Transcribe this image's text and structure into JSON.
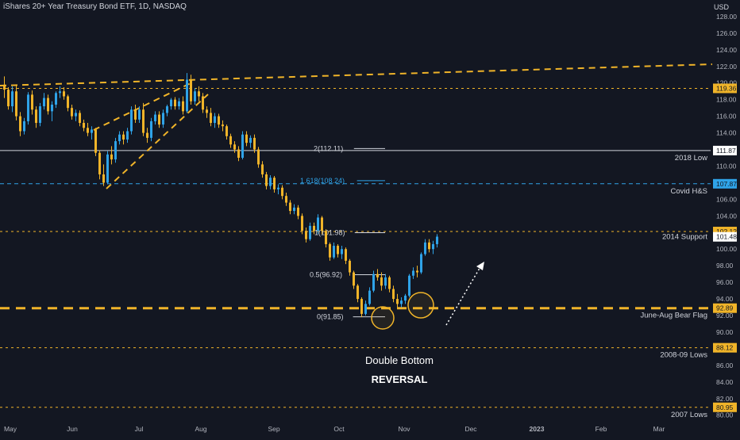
{
  "chart": {
    "title": "iShares 20+ Year Treasury Bond ETF, 1D, NASDAQ",
    "currency": "USD"
  },
  "chart_data": {
    "type": "candlestick",
    "x_ticks": [
      "May",
      "Jun",
      "Jul",
      "Aug",
      "Sep",
      "Oct",
      "Nov",
      "Dec",
      "2023",
      "Feb",
      "Mar"
    ],
    "y_ticks": [
      80,
      82,
      84,
      86,
      88,
      90,
      92,
      94,
      96,
      98,
      100,
      102,
      104,
      106,
      108,
      110,
      112,
      114,
      116,
      118,
      120,
      122,
      124,
      126,
      128
    ],
    "ylim": [
      79.4,
      130
    ],
    "grid": false,
    "candles": [
      [
        119.8,
        120.8,
        118.2,
        119.2
      ],
      [
        119.2,
        119.5,
        116.8,
        117.2
      ],
      [
        117.2,
        119.6,
        116.5,
        119.0
      ],
      [
        119.0,
        119.8,
        115.5,
        116.0
      ],
      [
        116.0,
        116.5,
        113.6,
        114.2
      ],
      [
        114.2,
        115.8,
        113.8,
        115.4
      ],
      [
        115.4,
        118.9,
        115.0,
        118.6
      ],
      [
        118.6,
        119.1,
        116.2,
        116.8
      ],
      [
        116.8,
        117.2,
        114.6,
        115.2
      ],
      [
        115.2,
        117.6,
        114.8,
        117.2
      ],
      [
        117.2,
        118.8,
        116.8,
        118.2
      ],
      [
        118.2,
        118.6,
        116.2,
        116.6
      ],
      [
        116.6,
        117.8,
        115.4,
        117.4
      ],
      [
        117.4,
        119.0,
        117.0,
        118.8
      ],
      [
        118.8,
        119.6,
        118.2,
        119.0
      ],
      [
        119.0,
        119.5,
        118.0,
        118.4
      ],
      [
        118.4,
        118.6,
        116.6,
        117.0
      ],
      [
        117.0,
        117.4,
        115.6,
        116.0
      ],
      [
        116.0,
        116.8,
        115.4,
        116.4
      ],
      [
        116.4,
        116.7,
        114.8,
        115.2
      ],
      [
        115.2,
        115.6,
        114.2,
        114.6
      ],
      [
        114.6,
        115.2,
        113.6,
        114.0
      ],
      [
        114.0,
        114.8,
        113.2,
        114.4
      ],
      [
        114.4,
        114.6,
        111.2,
        111.6
      ],
      [
        111.6,
        111.9,
        108.4,
        109.0
      ],
      [
        109.0,
        110.2,
        107.6,
        108.0
      ],
      [
        108.0,
        111.8,
        107.8,
        111.4
      ],
      [
        111.4,
        112.4,
        110.2,
        110.8
      ],
      [
        110.8,
        113.4,
        110.4,
        113.0
      ],
      [
        113.0,
        114.2,
        112.6,
        113.8
      ],
      [
        113.8,
        114.2,
        112.6,
        113.2
      ],
      [
        113.2,
        114.6,
        112.8,
        114.2
      ],
      [
        114.2,
        117.2,
        113.8,
        116.8
      ],
      [
        116.8,
        117.4,
        115.2,
        115.6
      ],
      [
        115.6,
        117.2,
        115.2,
        116.8
      ],
      [
        116.8,
        117.6,
        113.6,
        114.0
      ],
      [
        114.0,
        114.6,
        112.8,
        113.4
      ],
      [
        113.4,
        115.8,
        113.0,
        115.4
      ],
      [
        115.4,
        116.6,
        115.0,
        116.2
      ],
      [
        116.2,
        116.6,
        114.6,
        115.0
      ],
      [
        115.0,
        116.8,
        114.6,
        116.4
      ],
      [
        116.4,
        117.4,
        116.0,
        117.2
      ],
      [
        117.2,
        118.2,
        116.8,
        118.0
      ],
      [
        118.0,
        118.3,
        116.8,
        117.2
      ],
      [
        117.2,
        118.2,
        116.8,
        117.8
      ],
      [
        117.8,
        118.4,
        116.2,
        116.6
      ],
      [
        116.6,
        121.2,
        116.4,
        120.4
      ],
      [
        120.4,
        121.0,
        117.4,
        117.8
      ],
      [
        117.8,
        119.4,
        117.4,
        119.0
      ],
      [
        119.0,
        119.6,
        117.8,
        118.4
      ],
      [
        118.4,
        118.8,
        116.4,
        116.8
      ],
      [
        116.8,
        117.2,
        115.8,
        116.4
      ],
      [
        116.4,
        117.0,
        114.8,
        115.2
      ],
      [
        115.2,
        116.4,
        114.6,
        116.0
      ],
      [
        116.0,
        116.3,
        114.6,
        115.0
      ],
      [
        115.0,
        115.5,
        114.2,
        114.8
      ],
      [
        114.8,
        115.0,
        113.2,
        113.6
      ],
      [
        113.6,
        113.9,
        112.2,
        112.6
      ],
      [
        112.6,
        113.0,
        111.6,
        112.0
      ],
      [
        112.0,
        112.4,
        110.6,
        111.0
      ],
      [
        111.0,
        114.2,
        110.8,
        113.8
      ],
      [
        113.8,
        114.2,
        112.4,
        112.8
      ],
      [
        112.8,
        113.7,
        112.2,
        113.4
      ],
      [
        113.4,
        113.8,
        111.6,
        112.0
      ],
      [
        112.0,
        112.3,
        109.8,
        110.2
      ],
      [
        110.2,
        110.6,
        108.6,
        109.0
      ],
      [
        109.0,
        109.3,
        107.2,
        107.6
      ],
      [
        107.6,
        108.9,
        107.2,
        108.6
      ],
      [
        108.6,
        108.8,
        106.8,
        107.2
      ],
      [
        107.2,
        107.8,
        106.6,
        107.4
      ],
      [
        107.4,
        107.7,
        106.0,
        106.4
      ],
      [
        106.4,
        106.8,
        105.2,
        105.6
      ],
      [
        105.6,
        105.9,
        104.2,
        104.6
      ],
      [
        104.6,
        105.4,
        104.2,
        105.0
      ],
      [
        105.0,
        105.3,
        103.6,
        104.0
      ],
      [
        104.0,
        104.3,
        101.8,
        102.2
      ],
      [
        102.2,
        102.6,
        100.8,
        101.2
      ],
      [
        101.2,
        103.2,
        101.0,
        102.8
      ],
      [
        102.8,
        103.2,
        101.8,
        102.2
      ],
      [
        102.2,
        104.2,
        101.8,
        103.8
      ],
      [
        103.8,
        104.0,
        101.8,
        102.2
      ],
      [
        102.2,
        102.4,
        100.2,
        100.6
      ],
      [
        100.6,
        100.8,
        98.6,
        99.0
      ],
      [
        99.0,
        100.8,
        98.8,
        100.4
      ],
      [
        100.4,
        100.6,
        99.0,
        99.4
      ],
      [
        99.4,
        100.4,
        98.8,
        100.0
      ],
      [
        100.0,
        100.2,
        98.2,
        98.6
      ],
      [
        98.6,
        98.8,
        96.8,
        97.2
      ],
      [
        97.2,
        97.4,
        95.2,
        95.6
      ],
      [
        95.6,
        95.8,
        93.6,
        94.0
      ],
      [
        94.0,
        94.2,
        91.8,
        92.2
      ],
      [
        92.2,
        93.8,
        92.0,
        93.4
      ],
      [
        93.4,
        95.4,
        93.2,
        95.0
      ],
      [
        95.0,
        97.4,
        94.8,
        97.0
      ],
      [
        97.0,
        97.6,
        96.2,
        96.6
      ],
      [
        96.6,
        97.2,
        95.0,
        95.6
      ],
      [
        95.6,
        97.0,
        95.2,
        96.6
      ],
      [
        96.6,
        96.8,
        94.8,
        95.2
      ],
      [
        95.2,
        95.6,
        93.6,
        94.0
      ],
      [
        94.0,
        94.6,
        92.8,
        93.4
      ],
      [
        93.4,
        94.2,
        93.0,
        93.8
      ],
      [
        93.8,
        94.6,
        93.4,
        94.4
      ],
      [
        94.4,
        97.0,
        94.2,
        96.8
      ],
      [
        96.8,
        97.8,
        96.4,
        97.4
      ],
      [
        97.4,
        98.0,
        96.6,
        97.2
      ],
      [
        97.2,
        99.6,
        97.0,
        99.4
      ],
      [
        99.4,
        101.2,
        99.2,
        100.8
      ],
      [
        100.8,
        101.2,
        99.6,
        100.0
      ],
      [
        100.0,
        101.0,
        99.4,
        100.6
      ],
      [
        100.6,
        101.8,
        100.2,
        101.5
      ]
    ],
    "hlines": [
      {
        "price": 111.87,
        "tag": "111.87",
        "label": "2018 Low",
        "style": "solid",
        "color": "#d1d4dc"
      },
      {
        "price": 107.87,
        "tag": "107.87",
        "label": "Covid H&S",
        "style": "dashed",
        "color": "#2fa3e8"
      },
      {
        "price": 102.12,
        "tag": "102.12",
        "label": "",
        "style": "dotted",
        "color": "#f0b429"
      },
      {
        "price": 119.36,
        "tag": "119.36",
        "label": "",
        "style": "dotted",
        "color": "#f0b429"
      },
      {
        "price": 88.12,
        "tag": "88.12",
        "label": "2008-09 Lows",
        "style": "dotted",
        "color": "#f0b429"
      },
      {
        "price": 80.95,
        "tag": "80.95",
        "label": "2007 Lows",
        "style": "dotted",
        "color": "#f0b429"
      },
      {
        "price": 92.89,
        "tag": "92.89",
        "label": "June-Aug Bear Flag",
        "style": "thick-dashed",
        "color": "#f0b429"
      }
    ],
    "last_price": {
      "price": 101.48,
      "tag": "101.48",
      "label": "2014 Support"
    },
    "fib_levels": [
      {
        "price": 112.11,
        "text": "2(112.11)",
        "color": "#d1d4dc"
      },
      {
        "price": 108.24,
        "text": "1.618(108.24)",
        "color": "#2fa3e8"
      },
      {
        "price": 101.98,
        "text": "1(101.98)",
        "color": "#d1d4dc"
      },
      {
        "price": 96.92,
        "text": "0.5(96.92)",
        "color": "#d1d4dc"
      },
      {
        "price": 91.85,
        "text": "0(91.85)",
        "color": "#d1d4dc"
      }
    ],
    "annotations": {
      "double_bottom": "Double Bottom",
      "reversal": "REVERSAL"
    },
    "colors": {
      "background": "#131722",
      "up": "#2fa3e8",
      "down": "#f0b429",
      "accent": "#f0b429",
      "axis_text": "#b2b5be"
    }
  }
}
